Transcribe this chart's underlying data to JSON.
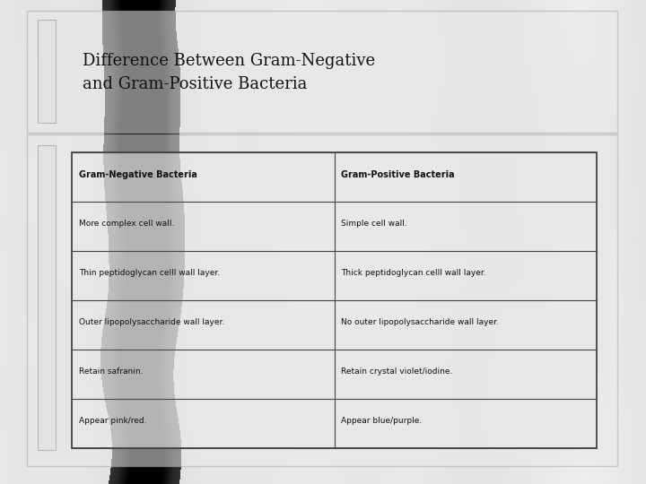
{
  "title_line1": "Difference Between Gram-Negative",
  "title_line2": "and Gram-Positive Bacteria",
  "col_headers": [
    "Gram-Negative Bacteria",
    "Gram-Positive Bacteria"
  ],
  "rows": [
    [
      "More complex cell wall.",
      "Simple cell wall."
    ],
    [
      "Thin peptidoglycan celll wall layer.",
      "Thick peptidoglycan celll wall layer."
    ],
    [
      "Outer lipopolysaccharide wall layer.",
      "No outer lipopolysaccharide wall layer."
    ],
    [
      "Retain safranin.",
      "Retain crystal violet/iodine."
    ],
    [
      "Appear pink/red.",
      "Appear blue/purple."
    ]
  ],
  "text_color": "#111111",
  "border_color": "#444444",
  "title_fontsize": 13,
  "header_fontsize": 7,
  "cell_fontsize": 6.5,
  "marble_base": "#d8d8d8",
  "panel_edge": "#aaaaaa",
  "panel_face": "#e8e8ea",
  "panel_alpha": 0.55,
  "table_face": "#e8e8ea",
  "table_alpha": 0.5
}
